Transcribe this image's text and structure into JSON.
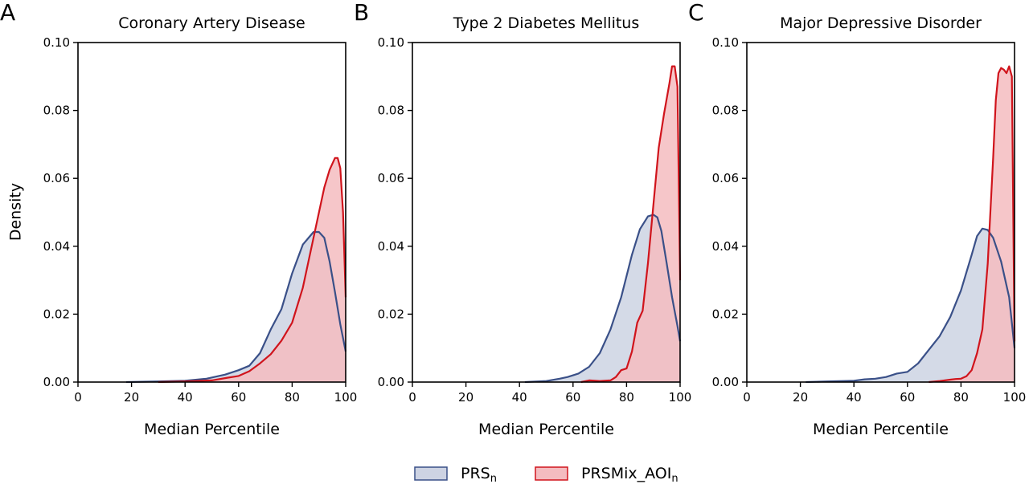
{
  "figure": {
    "ylabel": "Density",
    "legend": {
      "placement": "bottom-center",
      "entries": [
        {
          "base": "PRS",
          "sub": "n",
          "color": "#3a5088",
          "fill": "#cdd3e3"
        },
        {
          "base": "PRSMix_AOI",
          "sub": "n",
          "color": "#d0141c",
          "fill": "#f4bcc0"
        }
      ]
    }
  },
  "chart_data": [
    {
      "type": "area",
      "letter": "A",
      "title": "Coronary Artery Disease",
      "xlabel": "Median Percentile",
      "xlim": [
        0,
        100
      ],
      "ylim": [
        0,
        0.1
      ],
      "xticks": [
        "0",
        "20",
        "40",
        "60",
        "80",
        "100"
      ],
      "yticks": [
        "0.00",
        "0.02",
        "0.04",
        "0.06",
        "0.08",
        "0.10"
      ],
      "series": [
        {
          "x": [
            18,
            30,
            40,
            48,
            55,
            60,
            64,
            68,
            72,
            76,
            80,
            84,
            88,
            90,
            92,
            94,
            96,
            98,
            100
          ],
          "y": [
            0,
            0.0002,
            0.0004,
            0.001,
            0.0022,
            0.0035,
            0.0048,
            0.0085,
            0.0155,
            0.0215,
            0.032,
            0.0405,
            0.0442,
            0.0442,
            0.0425,
            0.0355,
            0.0265,
            0.017,
            0.009
          ]
        },
        {
          "x": [
            30,
            40,
            50,
            56,
            60,
            64,
            68,
            72,
            76,
            80,
            84,
            88,
            92,
            94,
            96,
            97,
            98,
            99,
            100
          ],
          "y": [
            0,
            0.0002,
            0.0005,
            0.0013,
            0.0018,
            0.0032,
            0.0055,
            0.0082,
            0.0122,
            0.0175,
            0.0278,
            0.0425,
            0.0573,
            0.0625,
            0.066,
            0.066,
            0.063,
            0.05,
            0.025
          ]
        }
      ]
    },
    {
      "type": "area",
      "letter": "B",
      "title": "Type 2 Diabetes Mellitus",
      "xlabel": "Median Percentile",
      "xlim": [
        0,
        100
      ],
      "ylim": [
        0,
        0.1
      ],
      "xticks": [
        "0",
        "20",
        "40",
        "60",
        "80",
        "100"
      ],
      "yticks": [
        "0.00",
        "0.02",
        "0.04",
        "0.06",
        "0.08",
        "0.10"
      ],
      "series": [
        {
          "x": [
            42,
            50,
            55,
            58,
            62,
            66,
            70,
            74,
            78,
            82,
            85,
            88,
            90,
            91.5,
            93,
            95,
            97,
            99,
            100
          ],
          "y": [
            0,
            0.0003,
            0.001,
            0.0015,
            0.0025,
            0.0045,
            0.0085,
            0.0155,
            0.025,
            0.0375,
            0.045,
            0.0488,
            0.0493,
            0.0485,
            0.0445,
            0.035,
            0.025,
            0.0165,
            0.012
          ]
        },
        {
          "x": [
            63,
            66,
            70,
            74,
            76,
            78,
            80,
            82,
            84,
            86,
            88,
            90,
            92,
            94,
            96,
            97,
            98,
            99,
            100
          ],
          "y": [
            0,
            0.0005,
            0.0003,
            0.0005,
            0.0015,
            0.0035,
            0.004,
            0.009,
            0.0175,
            0.021,
            0.035,
            0.052,
            0.069,
            0.079,
            0.088,
            0.093,
            0.093,
            0.087,
            0.03
          ]
        }
      ]
    },
    {
      "type": "area",
      "letter": "C",
      "title": "Major Depressive Disorder",
      "xlabel": "Median Percentile",
      "xlim": [
        0,
        100
      ],
      "ylim": [
        0,
        0.1
      ],
      "xticks": [
        "0",
        "20",
        "40",
        "60",
        "80",
        "100"
      ],
      "yticks": [
        "0.00",
        "0.02",
        "0.04",
        "0.06",
        "0.08",
        "0.10"
      ],
      "series": [
        {
          "x": [
            22,
            30,
            36,
            40,
            44,
            48,
            52,
            56,
            60,
            64,
            68,
            72,
            76,
            80,
            84,
            86,
            88,
            90,
            92,
            95,
            98,
            100
          ],
          "y": [
            0,
            0.0002,
            0.0003,
            0.0004,
            0.0008,
            0.001,
            0.0015,
            0.0025,
            0.003,
            0.0055,
            0.0095,
            0.0135,
            0.0192,
            0.027,
            0.0375,
            0.043,
            0.0452,
            0.0448,
            0.0425,
            0.0355,
            0.025,
            0.01
          ]
        },
        {
          "x": [
            68,
            72,
            74,
            76,
            78,
            80,
            82,
            84,
            86,
            88,
            90,
            92,
            93,
            94,
            95,
            96,
            97,
            98,
            99,
            100
          ],
          "y": [
            0,
            0.0003,
            0.0005,
            0.0007,
            0.0009,
            0.001,
            0.0017,
            0.0035,
            0.0085,
            0.0155,
            0.035,
            0.066,
            0.083,
            0.091,
            0.0925,
            0.092,
            0.091,
            0.093,
            0.09,
            0.012
          ]
        }
      ]
    }
  ]
}
